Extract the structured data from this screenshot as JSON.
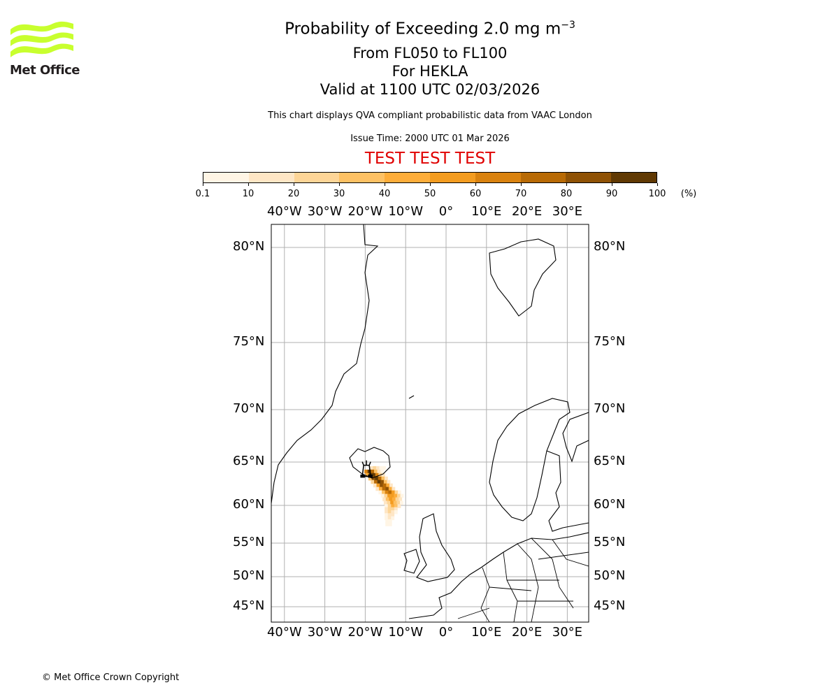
{
  "logo": {
    "text": "Met Office",
    "color": "#c8ff2e"
  },
  "title": {
    "main": "Probability of Exceeding 2.0 mg m",
    "main_superscript": "−3",
    "levels": "From FL050 to FL100",
    "volcano": "For HEKLA",
    "valid": "Valid at 1100 UTC 02/03/2026"
  },
  "subtitle": "This chart displays QVA compliant probabilistic data from VAAC London",
  "issue_time": "Issue Time: 2000 UTC 01 Mar 2026",
  "test_banner": "TEST TEST TEST",
  "test_color": "#e00000",
  "footer": "© Met Office Crown Copyright",
  "chart_data": {
    "type": "heatmap",
    "title": "Probability of Exceeding 2.0 mg m-3",
    "colorbar": {
      "unit_label": "(%)",
      "ticks": [
        "0.1",
        "10",
        "20",
        "30",
        "40",
        "50",
        "60",
        "70",
        "80",
        "90",
        "100"
      ],
      "bounds": [
        0.1,
        10,
        20,
        30,
        40,
        50,
        60,
        70,
        80,
        90,
        100
      ],
      "colors": [
        "#fff5e5",
        "#fee6c5",
        "#fdd597",
        "#fdc164",
        "#fdad3a",
        "#f39c20",
        "#d9820f",
        "#b86a05",
        "#8f5205",
        "#603903"
      ]
    },
    "lon_ticks": [
      {
        "value": -40,
        "label": "40°W"
      },
      {
        "value": -30,
        "label": "30°W"
      },
      {
        "value": -20,
        "label": "20°W"
      },
      {
        "value": -10,
        "label": "10°W"
      },
      {
        "value": 0,
        "label": "0°"
      },
      {
        "value": 10,
        "label": "10°E"
      },
      {
        "value": 20,
        "label": "20°E"
      },
      {
        "value": 30,
        "label": "30°E"
      }
    ],
    "lat_ticks": [
      {
        "value": 80,
        "label": "80°N"
      },
      {
        "value": 75,
        "label": "75°N"
      },
      {
        "value": 70,
        "label": "70°N"
      },
      {
        "value": 65,
        "label": "65°N"
      },
      {
        "value": 60,
        "label": "60°N"
      },
      {
        "value": 55,
        "label": "55°N"
      },
      {
        "value": 50,
        "label": "50°N"
      },
      {
        "value": 45,
        "label": "45°N"
      }
    ],
    "grid": true,
    "volcano": {
      "name": "HEKLA",
      "lat": 63.98,
      "lon": -19.7
    },
    "lon_step": 0.8,
    "rows": [
      {
        "lat": 64.3,
        "lon_start": -18.5,
        "probs": [
          10,
          20,
          15,
          8,
          5
        ]
      },
      {
        "lat": 63.9,
        "lon_start": -19.8,
        "probs": [
          60,
          90,
          70,
          30,
          15,
          8
        ]
      },
      {
        "lat": 63.5,
        "lon_start": -19.5,
        "probs": [
          40,
          95,
          95,
          60,
          25,
          10
        ]
      },
      {
        "lat": 63.1,
        "lon_start": -18.8,
        "probs": [
          30,
          85,
          98,
          70,
          30,
          10
        ]
      },
      {
        "lat": 62.7,
        "lon_start": -18.2,
        "probs": [
          20,
          70,
          92,
          80,
          35,
          12
        ]
      },
      {
        "lat": 62.3,
        "lon_start": -17.6,
        "probs": [
          15,
          55,
          88,
          75,
          40,
          10
        ]
      },
      {
        "lat": 61.9,
        "lon_start": -17.0,
        "probs": [
          10,
          40,
          75,
          80,
          45,
          15
        ]
      },
      {
        "lat": 61.5,
        "lon_start": -16.3,
        "probs": [
          8,
          30,
          60,
          70,
          50,
          20,
          8
        ]
      },
      {
        "lat": 61.1,
        "lon_start": -15.7,
        "probs": [
          5,
          25,
          50,
          55,
          40,
          20,
          8
        ]
      },
      {
        "lat": 60.7,
        "lon_start": -15.3,
        "probs": [
          10,
          30,
          50,
          40,
          25,
          10
        ]
      },
      {
        "lat": 60.3,
        "lon_start": -15.0,
        "probs": [
          10,
          25,
          55,
          35,
          20,
          8
        ]
      },
      {
        "lat": 59.9,
        "lon_start": -14.8,
        "probs": [
          8,
          20,
          40,
          30,
          15
        ]
      },
      {
        "lat": 59.5,
        "lon_start": -14.8,
        "probs": [
          10,
          25,
          25,
          15
        ]
      },
      {
        "lat": 59.1,
        "lon_start": -14.8,
        "probs": [
          10,
          20,
          15,
          8
        ]
      },
      {
        "lat": 58.7,
        "lon_start": -14.8,
        "probs": [
          8,
          15,
          10
        ]
      },
      {
        "lat": 58.3,
        "lon_start": -14.8,
        "probs": [
          5,
          10,
          8
        ]
      },
      {
        "lat": 57.9,
        "lon_start": -14.6,
        "probs": [
          5,
          8
        ]
      },
      {
        "lat": 57.5,
        "lon_start": -14.6,
        "probs": [
          3,
          5
        ]
      }
    ]
  }
}
